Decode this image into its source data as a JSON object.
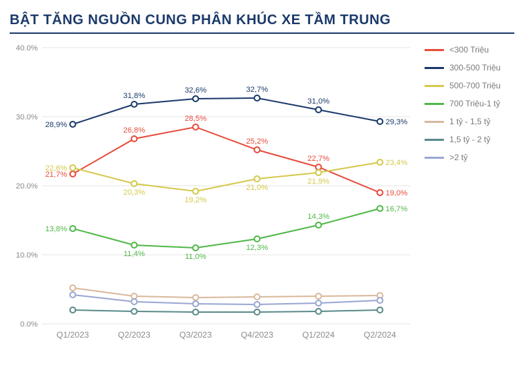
{
  "title": "BẬT TĂNG NGUỒN CUNG PHÂN KHÚC XE TẦM TRUNG",
  "chart": {
    "type": "line",
    "background_color": "#ffffff",
    "grid_color": "#e6e6e6",
    "axis_label_color": "#8a8a8a",
    "categories": [
      "Q1/2023",
      "Q2/2023",
      "Q3/2023",
      "Q4/2023",
      "Q1/2024",
      "Q2/2024"
    ],
    "ylim": [
      0,
      40
    ],
    "ytick_step": 10,
    "ytick_format_suffix": ".0%",
    "value_label_suffix": "%",
    "line_width": 2,
    "marker_radius": 4,
    "label_fontsize": 11,
    "series": [
      {
        "key": "300-500",
        "label": "300-500 Triệu",
        "color": "#1b3a6b",
        "values": [
          28.9,
          31.8,
          32.6,
          32.7,
          31.0,
          29.3
        ],
        "show_labels": true,
        "label_pos": [
          "left",
          "above",
          "above",
          "above",
          "above",
          "right"
        ]
      },
      {
        "key": "lt300",
        "label": "<300 Triệu",
        "color": "#e74c3c",
        "values": [
          21.7,
          26.8,
          28.5,
          25.2,
          22.7,
          19.0
        ],
        "show_labels": true,
        "label_pos": [
          "left",
          "above",
          "above",
          "above",
          "above",
          "right"
        ]
      },
      {
        "key": "500-700",
        "label": "500-700 Triệu",
        "color": "#d4c94b",
        "values": [
          22.6,
          20.3,
          19.2,
          21.0,
          21.9,
          23.4
        ],
        "show_labels": true,
        "label_pos": [
          "left",
          "below",
          "below",
          "below",
          "below",
          "right"
        ]
      },
      {
        "key": "700-1ty",
        "label": "700 Triệu-1 tỷ",
        "color": "#50b848",
        "values": [
          13.8,
          11.4,
          11.0,
          12.3,
          14.3,
          16.7
        ],
        "show_labels": true,
        "label_pos": [
          "left",
          "below",
          "below",
          "below",
          "above",
          "right"
        ]
      },
      {
        "key": "1-1.5ty",
        "label": "1 tỷ - 1,5 tỷ",
        "color": "#d9b89c",
        "values": [
          5.2,
          4.0,
          3.8,
          3.9,
          4.0,
          4.1
        ],
        "show_labels": false
      },
      {
        "key": "1.5-2ty",
        "label": "1,5 tỷ - 2 tỷ",
        "color": "#5a8a8a",
        "values": [
          2.0,
          1.8,
          1.7,
          1.7,
          1.8,
          2.0
        ],
        "show_labels": false
      },
      {
        "key": "gt2ty",
        "label": ">2 tỷ",
        "color": "#9aa6d3",
        "values": [
          4.2,
          3.2,
          2.9,
          2.8,
          3.0,
          3.4
        ],
        "show_labels": false
      }
    ],
    "legend_order": [
      "lt300",
      "300-500",
      "500-700",
      "700-1ty",
      "1-1.5ty",
      "1.5-2ty",
      "gt2ty"
    ]
  }
}
